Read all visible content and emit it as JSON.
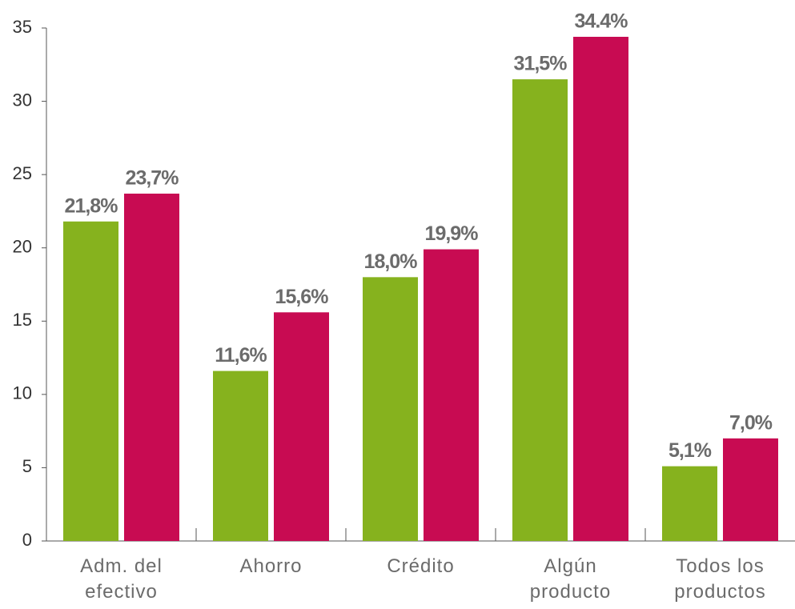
{
  "chart_data": {
    "type": "bar",
    "categories": [
      "Adm. del efectivo",
      "Ahorro",
      "Crédito",
      "Algún producto",
      "Todos los productos"
    ],
    "series": [
      {
        "color": "#86b21e",
        "values": [
          21.8,
          11.6,
          18.0,
          31.5,
          5.1
        ],
        "value_labels": [
          "21,8%",
          "11,6%",
          "18,0%",
          "31,5%",
          "5,1%"
        ]
      },
      {
        "color": "#c80b52",
        "values": [
          23.7,
          15.6,
          19.9,
          34.4,
          7.0
        ],
        "value_labels": [
          "23,7%",
          "15,6%",
          "19,9%",
          "34.4%",
          "7,0%"
        ]
      }
    ],
    "ylim": [
      0,
      35
    ],
    "yticks": [
      0,
      5,
      10,
      15,
      20,
      25,
      30,
      35
    ],
    "grid": false
  }
}
